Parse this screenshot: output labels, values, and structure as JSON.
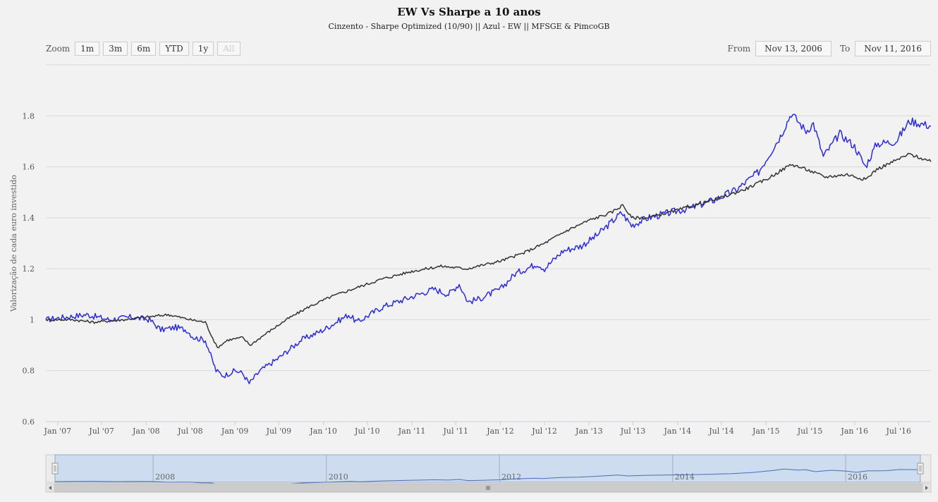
{
  "header": {
    "title": "EW Vs Sharpe a 10 anos",
    "subtitle": "Cinzento - Sharpe Optimized (10/90) || Azul - EW || MFSGE & PimcoGB"
  },
  "zoom": {
    "label": "Zoom",
    "buttons": [
      "1m",
      "3m",
      "6m",
      "YTD",
      "1y",
      "All"
    ],
    "active": "All"
  },
  "range": {
    "from_label": "From",
    "from_value": "Nov 13, 2006",
    "to_label": "To",
    "to_value": "Nov 11, 2016"
  },
  "chart_data": {
    "type": "line",
    "ylabel": "Valorização de cada euro investido",
    "ylim": [
      0.6,
      2.0
    ],
    "yticks": [
      0.6,
      0.8,
      1,
      1.2,
      1.4,
      1.6,
      1.8
    ],
    "ytick_labels": [
      "0.6",
      "0.8",
      "1",
      "1.2",
      "1.4",
      "1.6",
      "1.8"
    ],
    "xlim": [
      "2006-11-13",
      "2016-11-11"
    ],
    "xticks": [
      "2007-01-01",
      "2007-07-01",
      "2008-01-01",
      "2008-07-01",
      "2009-01-01",
      "2009-07-01",
      "2010-01-01",
      "2010-07-01",
      "2011-01-01",
      "2011-07-01",
      "2012-01-01",
      "2012-07-01",
      "2013-01-01",
      "2013-07-01",
      "2014-01-01",
      "2014-07-01",
      "2015-01-01",
      "2015-07-01",
      "2016-01-01",
      "2016-07-01"
    ],
    "xtick_labels": [
      "Jan '07",
      "Jul '07",
      "Jan '08",
      "Jul '08",
      "Jan '09",
      "Jul '09",
      "Jan '10",
      "Jul '10",
      "Jan '11",
      "Jul '11",
      "Jan '12",
      "Jul '12",
      "Jan '13",
      "Jul '13",
      "Jan '14",
      "Jul '14",
      "Jan '15",
      "Jul '15",
      "Jan '16",
      "Jul '16"
    ],
    "series": [
      {
        "color": "#2b2bdd",
        "points": [
          [
            "2006-11-13",
            1.0
          ],
          [
            "2007-02-01",
            1.01
          ],
          [
            "2007-05-01",
            1.02
          ],
          [
            "2007-08-01",
            1.0
          ],
          [
            "2007-11-01",
            1.01
          ],
          [
            "2008-01-15",
            1.0
          ],
          [
            "2008-03-01",
            0.96
          ],
          [
            "2008-05-01",
            0.97
          ],
          [
            "2008-06-15",
            0.96
          ],
          [
            "2008-07-15",
            0.93
          ],
          [
            "2008-09-01",
            0.92
          ],
          [
            "2008-10-15",
            0.8
          ],
          [
            "2008-11-15",
            0.78
          ],
          [
            "2009-01-01",
            0.8
          ],
          [
            "2009-02-01",
            0.79
          ],
          [
            "2009-03-01",
            0.75
          ],
          [
            "2009-04-15",
            0.8
          ],
          [
            "2009-07-01",
            0.85
          ],
          [
            "2009-10-01",
            0.92
          ],
          [
            "2010-01-01",
            0.96
          ],
          [
            "2010-04-15",
            1.02
          ],
          [
            "2010-05-20",
            0.99
          ],
          [
            "2010-09-01",
            1.05
          ],
          [
            "2011-01-01",
            1.09
          ],
          [
            "2011-04-01",
            1.12
          ],
          [
            "2011-06-01",
            1.1
          ],
          [
            "2011-07-15",
            1.14
          ],
          [
            "2011-08-20",
            1.07
          ],
          [
            "2011-10-01",
            1.08
          ],
          [
            "2012-01-01",
            1.12
          ],
          [
            "2012-03-01",
            1.18
          ],
          [
            "2012-06-01",
            1.22
          ],
          [
            "2012-07-01",
            1.2
          ],
          [
            "2012-09-15",
            1.27
          ],
          [
            "2012-12-01",
            1.29
          ],
          [
            "2013-02-01",
            1.33
          ],
          [
            "2013-05-15",
            1.42
          ],
          [
            "2013-06-25",
            1.37
          ],
          [
            "2013-09-01",
            1.4
          ],
          [
            "2013-12-01",
            1.42
          ],
          [
            "2014-03-01",
            1.44
          ],
          [
            "2014-06-01",
            1.47
          ],
          [
            "2014-09-01",
            1.51
          ],
          [
            "2014-12-01",
            1.58
          ],
          [
            "2015-03-01",
            1.72
          ],
          [
            "2015-04-15",
            1.81
          ],
          [
            "2015-06-15",
            1.74
          ],
          [
            "2015-07-15",
            1.77
          ],
          [
            "2015-08-25",
            1.64
          ],
          [
            "2015-11-01",
            1.73
          ],
          [
            "2016-01-01",
            1.68
          ],
          [
            "2016-02-15",
            1.6
          ],
          [
            "2016-04-01",
            1.69
          ],
          [
            "2016-06-20",
            1.7
          ],
          [
            "2016-08-15",
            1.78
          ],
          [
            "2016-11-11",
            1.76
          ]
        ]
      },
      {
        "color": "#333333",
        "points": [
          [
            "2006-11-13",
            1.0
          ],
          [
            "2007-03-01",
            1.0
          ],
          [
            "2007-06-01",
            0.99
          ],
          [
            "2007-10-01",
            1.0
          ],
          [
            "2008-01-01",
            1.01
          ],
          [
            "2008-04-01",
            1.02
          ],
          [
            "2008-07-01",
            1.0
          ],
          [
            "2008-09-01",
            0.99
          ],
          [
            "2008-10-20",
            0.89
          ],
          [
            "2008-12-01",
            0.92
          ],
          [
            "2009-02-01",
            0.93
          ],
          [
            "2009-03-05",
            0.9
          ],
          [
            "2009-05-01",
            0.94
          ],
          [
            "2009-08-01",
            1.0
          ],
          [
            "2009-11-01",
            1.05
          ],
          [
            "2010-02-01",
            1.09
          ],
          [
            "2010-05-01",
            1.12
          ],
          [
            "2010-09-01",
            1.16
          ],
          [
            "2011-01-01",
            1.19
          ],
          [
            "2011-05-01",
            1.21
          ],
          [
            "2011-08-15",
            1.2
          ],
          [
            "2012-01-01",
            1.23
          ],
          [
            "2012-04-01",
            1.26
          ],
          [
            "2012-07-01",
            1.3
          ],
          [
            "2012-10-01",
            1.35
          ],
          [
            "2013-01-01",
            1.39
          ],
          [
            "2013-04-01",
            1.42
          ],
          [
            "2013-05-20",
            1.45
          ],
          [
            "2013-06-25",
            1.4
          ],
          [
            "2013-09-01",
            1.4
          ],
          [
            "2014-01-01",
            1.43
          ],
          [
            "2014-06-01",
            1.47
          ],
          [
            "2014-10-01",
            1.51
          ],
          [
            "2015-01-01",
            1.55
          ],
          [
            "2015-04-15",
            1.61
          ],
          [
            "2015-06-15",
            1.59
          ],
          [
            "2015-09-01",
            1.56
          ],
          [
            "2015-12-01",
            1.57
          ],
          [
            "2016-02-15",
            1.55
          ],
          [
            "2016-04-01",
            1.59
          ],
          [
            "2016-08-15",
            1.65
          ],
          [
            "2016-11-11",
            1.62
          ]
        ]
      }
    ],
    "navigator": {
      "tick_labels": [
        "2008",
        "2010",
        "2012",
        "2014",
        "2016"
      ],
      "tick_dates": [
        "2008-01-01",
        "2010-01-01",
        "2012-01-01",
        "2014-01-01",
        "2016-01-01"
      ]
    }
  }
}
